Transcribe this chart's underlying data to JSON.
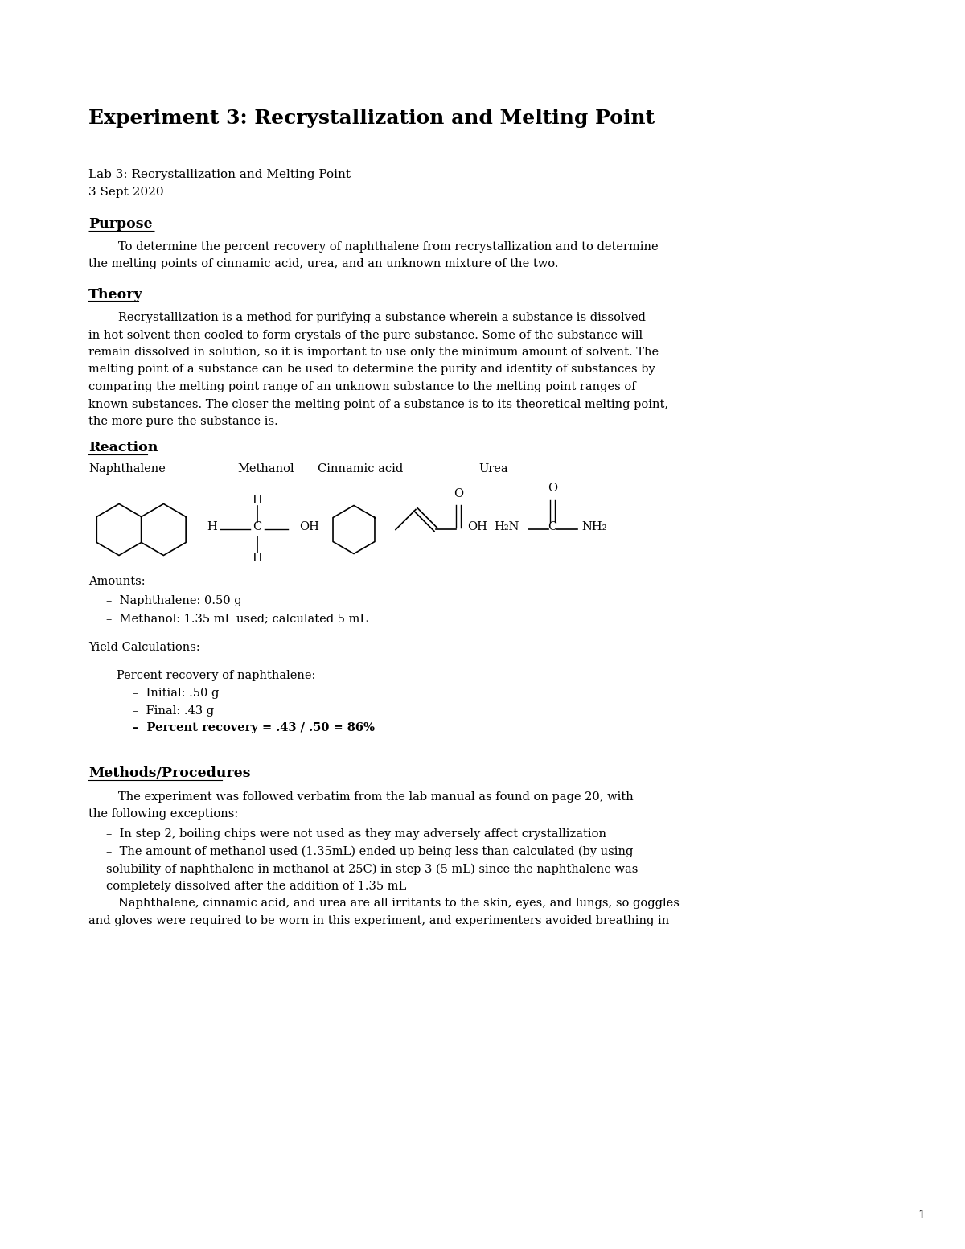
{
  "bg_color": "#ffffff",
  "title": "Experiment 3: Recrystallization and Melting Point",
  "meta1": "Lab 3: Recrystallization and Melting Point",
  "meta2": "3 Sept 2020",
  "purpose_header": "Purpose",
  "purpose_text": "        To determine the percent recovery of naphthalene from recrystallization and to determine\nthe melting points of cinnamic acid, urea, and an unknown mixture of the two.",
  "theory_header": "Theory",
  "theory_text": "        Recrystallization is a method for purifying a substance wherein a substance is dissolved\nin hot solvent then cooled to form crystals of the pure substance. Some of the substance will\nremain dissolved in solution, so it is important to use only the minimum amount of solvent. The\nmelting point of a substance can be used to determine the purity and identity of substances by\ncomparing the melting point range of an unknown substance to the melting point ranges of\nknown substances. The closer the melting point of a substance is to its theoretical melting point,\nthe more pure the substance is.",
  "reaction_header": "Reaction",
  "reaction_labels": [
    "Naphthalene",
    "Methanol",
    "Cinnamic acid",
    "Urea"
  ],
  "amounts_header": "Amounts:",
  "amounts_items": [
    "Naphthalene: 0.50 g",
    "Methanol: 1.35 mL used; calculated 5 mL"
  ],
  "yield_header": "Yield Calculations:",
  "yield_sub": "Percent recovery of naphthalene:",
  "yield_items": [
    "Initial: .50 g",
    "Final: .43 g"
  ],
  "yield_bold": "Percent recovery = .43 / .50 = 86%",
  "methods_header": "Methods/Procedures",
  "methods_text": "        The experiment was followed verbatim from the lab manual as found on page 20, with\nthe following exceptions:",
  "methods_items": [
    "In step 2, boiling chips were not used as they may adversely affect crystallization",
    "The amount of methanol used (1.35mL) ended up being less than calculated (by using\n        solubility of naphthalene in methanol at 25C) in step 3 (5 mL) since the naphthalene was\n        completely dissolved after the addition of 1.35 mL"
  ],
  "methods_text2": "        Naphthalene, cinnamic acid, and urea are all irritants to the skin, eyes, and lungs, so goggles\nand gloves were required to be worn in this experiment, and experimenters avoided breathing in",
  "page_num": "1",
  "font_family": "DejaVu Serif",
  "font_size_title": 18,
  "font_size_body": 12,
  "font_size_meta": 11,
  "font_size_small": 10.5
}
